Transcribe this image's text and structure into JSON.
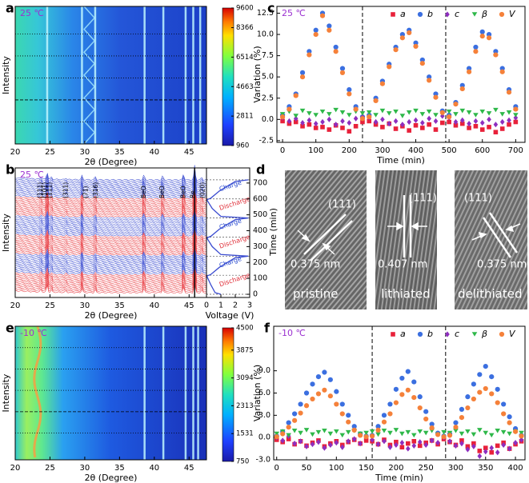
{
  "chart_data": [
    {
      "type": "heatmap",
      "panel_label": "a",
      "annotation": "25 ℃",
      "ylabel": "Intensity",
      "xlabel": "2θ (Degree)",
      "xlim": [
        20,
        47.5
      ],
      "xticks": [
        20,
        25,
        30,
        35,
        40,
        45
      ],
      "clim": [
        960,
        9600
      ],
      "cticks": [
        960,
        2811,
        4663,
        6514,
        8366,
        9600
      ]
    },
    {
      "type": "waterfall",
      "panel_label": "b",
      "annotation": "25 ℃",
      "ylabel": "Intensity",
      "xlabel": "2θ (Degree)",
      "xlim": [
        20,
        47.5
      ],
      "xticks": [
        20,
        25,
        30,
        35,
        40,
        45
      ],
      "peak_labels": [
        "(111)",
        "(101)",
        "(11̄1)",
        "(311)",
        "(71̄)",
        "(316)",
        "BeO",
        "BeO",
        "BeO",
        "Be",
        "(020)"
      ],
      "voltage_profile": {
        "xlabel": "Voltage (V)",
        "ylabel": "Time (min)",
        "xlim": [
          0,
          3
        ],
        "xticks": [
          0,
          1,
          2,
          3
        ],
        "ylim": [
          -20,
          795
        ],
        "yticks": [
          0,
          100,
          200,
          300,
          400,
          500,
          600,
          700
        ],
        "x": [
          0,
          10,
          60,
          115,
          125,
          170,
          230,
          240,
          250,
          300,
          355,
          365,
          410,
          470,
          480,
          490,
          540,
          595,
          605,
          650,
          710,
          720
        ],
        "values": [
          1.0,
          0.6,
          0.3,
          0.02,
          0.3,
          0.9,
          2.0,
          2.9,
          1.0,
          0.4,
          0.02,
          0.3,
          0.9,
          2.0,
          2.9,
          1.0,
          0.4,
          0.02,
          0.3,
          0.9,
          2.0,
          2.9
        ],
        "color": "#3a4bd0",
        "annotations": [
          "Discharge",
          "Charge",
          "Discharge",
          "Charge",
          "Discharge",
          "Charge"
        ]
      }
    },
    {
      "type": "scatter",
      "panel_label": "c",
      "annotation": "25 ℃",
      "xlabel": "Time (min)",
      "ylabel": "Variation (%)",
      "xlim": [
        -17,
        728
      ],
      "xticks": [
        0,
        100,
        200,
        300,
        400,
        500,
        600,
        700
      ],
      "ylim": [
        -2.7,
        13.3
      ],
      "yticks": [
        -2.5,
        {
          "value": 0,
          "label": "0.0"
        },
        2.5,
        {
          "value": 5,
          "label": "5.0"
        },
        7.5,
        {
          "value": 10,
          "label": "10.0"
        },
        12.5
      ],
      "dividers": [
        240,
        490
      ],
      "legend": "upper right",
      "x": [
        0,
        20,
        40,
        60,
        80,
        100,
        120,
        140,
        160,
        180,
        200,
        220,
        240,
        260,
        280,
        300,
        320,
        340,
        360,
        380,
        400,
        420,
        440,
        460,
        480,
        500,
        520,
        540,
        560,
        580,
        600,
        620,
        640,
        660,
        680,
        700
      ],
      "series": [
        {
          "name": "a",
          "color": "#e8213a",
          "marker": "square",
          "values": [
            -0.2,
            -0.5,
            -0.3,
            -0.8,
            -0.6,
            -1.0,
            -0.9,
            -1.2,
            -0.7,
            -1.0,
            -1.4,
            -0.8,
            -0.3,
            -0.2,
            -0.6,
            -0.9,
            -0.5,
            -1.1,
            -0.8,
            -1.3,
            -0.7,
            -1.0,
            -0.6,
            -1.2,
            -0.4,
            -0.3,
            -0.7,
            -0.5,
            -1.0,
            -0.8,
            -1.2,
            -0.9,
            -1.5,
            -1.1,
            -0.6,
            -0.3
          ]
        },
        {
          "name": "b",
          "color": "#3b6fe0",
          "marker": "circle",
          "values": [
            0.5,
            1.5,
            3,
            5.5,
            8,
            10.5,
            12.5,
            11,
            8.5,
            6,
            3.5,
            1.5,
            0.3,
            0.5,
            2.5,
            4.5,
            6.5,
            8.5,
            10,
            10.5,
            9,
            7,
            5,
            3,
            1,
            0.5,
            2,
            4,
            6,
            8.5,
            10.3,
            10,
            8,
            6,
            3.5,
            1.5
          ]
        },
        {
          "name": "c",
          "color": "#8e2ebf",
          "marker": "diamond",
          "values": [
            0.2,
            -0.2,
            0.1,
            -0.4,
            -0.1,
            -0.5,
            -0.3,
            0.0,
            -0.6,
            -0.2,
            -0.4,
            0.1,
            0.3,
            0.2,
            -0.3,
            0.0,
            -0.5,
            -0.2,
            -0.6,
            -0.3,
            -0.1,
            -0.4,
            0.1,
            -0.2,
            0.4,
            0.2,
            -0.3,
            -0.1,
            -0.5,
            -0.2,
            -0.4,
            0.0,
            -0.6,
            -0.3,
            -0.1,
            0.2
          ]
        },
        {
          "name": "β",
          "color": "#2fb84a",
          "marker": "triangle-down",
          "values": [
            0.6,
            0.9,
            0.4,
            1.0,
            0.7,
            0.5,
            0.9,
            0.6,
            1.1,
            0.8,
            0.5,
            0.9,
            0.7,
            0.8,
            0.5,
            1.0,
            0.7,
            0.9,
            0.4,
            0.8,
            1.0,
            0.6,
            0.9,
            0.5,
            0.7,
            0.9,
            0.6,
            1.0,
            0.8,
            0.5,
            0.9,
            0.7,
            1.1,
            0.6,
            0.8,
            0.5
          ]
        },
        {
          "name": "V",
          "color": "#f5813a",
          "marker": "circle",
          "values": [
            0.3,
            1.2,
            2.8,
            5,
            7.6,
            10,
            12.2,
            10.5,
            8,
            5.5,
            3,
            1.2,
            0.1,
            0.3,
            2.2,
            4.2,
            6.2,
            8.2,
            9.6,
            10.2,
            8.6,
            6.6,
            4.6,
            2.6,
            0.8,
            0.3,
            1.8,
            3.6,
            5.6,
            8,
            9.8,
            9.6,
            7.6,
            5.6,
            3.2,
            1.2
          ]
        }
      ]
    },
    {
      "type": "heatmap",
      "panel_label": "e",
      "annotation": "-10 ℃",
      "ylabel": "Intensity",
      "xlabel": "2θ (Degree)",
      "xlim": [
        20,
        47.5
      ],
      "xticks": [
        20,
        25,
        30,
        35,
        40,
        45
      ],
      "clim": [
        750,
        4500
      ],
      "cticks": [
        750,
        1531,
        2313,
        3094,
        3875,
        4500
      ]
    },
    {
      "type": "scatter",
      "panel_label": "f",
      "annotation": "-10 ℃",
      "xlabel": "Time (min)",
      "ylabel": "Variation (%)",
      "xlim": [
        -5,
        416
      ],
      "xticks": [
        0,
        50,
        100,
        150,
        200,
        250,
        300,
        350,
        400
      ],
      "ylim": [
        -3,
        15
      ],
      "yticks": [
        {
          "value": -3,
          "label": "-3.0"
        },
        {
          "value": 0,
          "label": "0.0"
        },
        {
          "value": 3,
          "label": "3.0"
        },
        {
          "value": 6,
          "label": "6.0"
        },
        {
          "value": 9,
          "label": "9.0"
        }
      ],
      "dividers": [
        160,
        283
      ],
      "legend": "upper right",
      "x": [
        0,
        10,
        20,
        30,
        40,
        50,
        60,
        70,
        80,
        90,
        100,
        110,
        120,
        130,
        140,
        150,
        160,
        170,
        180,
        190,
        200,
        210,
        220,
        230,
        240,
        250,
        260,
        270,
        280,
        290,
        300,
        310,
        320,
        330,
        340,
        350,
        360,
        370,
        380,
        390,
        400,
        410
      ],
      "series": [
        {
          "name": "a",
          "color": "#e8213a",
          "marker": "square",
          "values": [
            -0.3,
            -0.6,
            -0.2,
            -0.9,
            -0.5,
            -1.1,
            -0.7,
            -0.4,
            -1.2,
            -0.8,
            -0.5,
            -1.0,
            -0.6,
            -0.3,
            -0.8,
            -0.4,
            -0.5,
            -0.9,
            -0.3,
            -1.0,
            -0.6,
            -1.3,
            -0.8,
            -0.5,
            -1.1,
            -0.7,
            -0.4,
            -0.9,
            -0.2,
            -0.6,
            -1.0,
            -0.4,
            -1.2,
            -0.8,
            -1.8,
            -1.4,
            -2.0,
            -1.1,
            -0.7,
            -1.5,
            -0.9,
            -0.5
          ]
        },
        {
          "name": "b",
          "color": "#3b6fe0",
          "marker": "circle",
          "values": [
            0.2,
            0.8,
            2,
            3.2,
            4.5,
            6,
            7.2,
            8.2,
            8.8,
            7.8,
            6.2,
            4.5,
            3,
            1.5,
            0.5,
            0.2,
            0.3,
            1.5,
            3,
            4.5,
            6.5,
            8,
            8.9,
            7.5,
            5.5,
            3.5,
            1.8,
            0.6,
            0.2,
            0.5,
            2,
            3.8,
            5.5,
            7.2,
            8.5,
            9.6,
            8.2,
            6.5,
            4.5,
            2.8,
            1.2,
            0.3
          ]
        },
        {
          "name": "c",
          "color": "#8e2ebf",
          "marker": "diamond",
          "values": [
            0.0,
            -0.4,
            0.2,
            -0.8,
            -0.5,
            -1.2,
            -0.9,
            -0.6,
            -1.4,
            -1.0,
            -0.7,
            -1.3,
            -0.5,
            -0.2,
            -0.8,
            0.1,
            -0.3,
            -0.9,
            -0.5,
            -1.3,
            -1.0,
            -0.7,
            -1.5,
            -1.1,
            -0.6,
            -1.0,
            -0.4,
            -0.7,
            0.0,
            -0.5,
            -1.1,
            -0.8,
            -1.6,
            -1.2,
            -2.5,
            -1.9,
            -1.4,
            -2.0,
            -1.0,
            -1.5,
            -0.7,
            -0.3
          ]
        },
        {
          "name": "β",
          "color": "#2fb84a",
          "marker": "triangle-down",
          "values": [
            0.5,
            0.8,
            0.3,
            0.9,
            0.6,
            1.0,
            0.4,
            0.7,
            0.9,
            0.5,
            0.8,
            0.3,
            0.7,
            0.9,
            0.5,
            0.6,
            0.8,
            0.4,
            0.9,
            0.6,
            1.0,
            0.5,
            0.7,
            0.3,
            0.8,
            0.6,
            0.9,
            0.4,
            0.7,
            0.6,
            0.9,
            0.5,
            0.8,
            0.4,
            1.0,
            0.6,
            0.3,
            0.9,
            0.7,
            0.5,
            0.8,
            0.6
          ]
        },
        {
          "name": "V",
          "color": "#f5813a",
          "marker": "circle",
          "values": [
            0.1,
            0.5,
            1.4,
            2.3,
            3.3,
            4.3,
            5.2,
            5.9,
            6.4,
            5.6,
            4.5,
            3.2,
            2.1,
            1.0,
            0.3,
            0.1,
            0.2,
            1.0,
            2.1,
            3.2,
            4.7,
            5.8,
            6.4,
            5.4,
            4.0,
            2.5,
            1.3,
            0.4,
            0.1,
            0.3,
            1.4,
            2.7,
            4.0,
            5.2,
            6.1,
            6.6,
            5.9,
            4.7,
            3.2,
            2.0,
            0.8,
            0.2
          ]
        }
      ]
    }
  ],
  "panel_d": {
    "panel_label": "d",
    "images": [
      {
        "plane": "(111)",
        "spacing": "0.375 nm",
        "state": "pristine"
      },
      {
        "plane": "(111)",
        "spacing": "0.407 nm",
        "state": "lithiated"
      },
      {
        "plane": "(111)",
        "spacing": "0.375 nm",
        "state": "delithiated"
      }
    ]
  }
}
